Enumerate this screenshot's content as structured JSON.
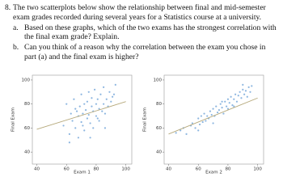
{
  "question": {
    "number": "8.",
    "intro": "The two scatterplots below show the relationship between final and mid-semester exam grades recorded during several years for a Statistics course at a university.",
    "parts": [
      {
        "label": "a.",
        "text": "Based on these graphs, which of the two exams has the strongest correlation with the final exam grade? Explain."
      },
      {
        "label": "b.",
        "text": "Can you think of a reason why the correlation between the exam you chose in part (a) and the final exam is higher?"
      }
    ]
  },
  "chart_data": [
    {
      "type": "scatter",
      "x_label": "Exam 1",
      "y_label": "Final Exam",
      "color": "#8db6e0",
      "x": [
        58,
        60,
        62,
        63,
        64,
        65,
        66,
        67,
        68,
        68,
        69,
        70,
        70,
        71,
        72,
        72,
        73,
        74,
        74,
        75,
        75,
        76,
        77,
        77,
        78,
        78,
        79,
        80,
        80,
        81,
        82,
        82,
        83,
        84,
        85,
        85,
        86,
        87,
        88,
        89,
        90,
        91,
        92,
        62,
        66,
        71,
        76,
        81,
        86,
        93
      ],
      "y": [
        62,
        80,
        55,
        72,
        66,
        84,
        60,
        74,
        70,
        52,
        78,
        65,
        88,
        72,
        58,
        80,
        75,
        68,
        82,
        90,
        71,
        64,
        78,
        85,
        60,
        74,
        92,
        70,
        80,
        84,
        76,
        66,
        88,
        74,
        80,
        94,
        72,
        84,
        78,
        90,
        82,
        86,
        88,
        48,
        76,
        62,
        52,
        68,
        60,
        96
      ],
      "fit_line": {
        "color": "#b5a87a",
        "x": [
          40,
          100
        ],
        "y": [
          59,
          82
        ]
      },
      "xlim": [
        37,
        104
      ],
      "ylim": [
        30,
        104
      ],
      "xticks": [
        40,
        60,
        80,
        100
      ],
      "yticks": [
        40,
        60,
        80,
        100
      ]
    },
    {
      "type": "scatter",
      "x_label": "Exam 2",
      "y_label": "Final Exam",
      "color": "#8db6e0",
      "x": [
        45,
        48,
        50,
        52,
        55,
        56,
        58,
        60,
        61,
        62,
        63,
        64,
        65,
        66,
        67,
        68,
        69,
        70,
        71,
        72,
        73,
        74,
        75,
        76,
        77,
        78,
        79,
        80,
        80,
        81,
        82,
        83,
        84,
        85,
        86,
        87,
        88,
        89,
        90,
        91,
        92,
        93,
        94,
        95,
        96,
        60,
        70,
        76,
        84,
        90
      ],
      "y": [
        56,
        58,
        60,
        55,
        62,
        64,
        60,
        68,
        63,
        70,
        65,
        72,
        66,
        70,
        68,
        74,
        71,
        76,
        70,
        78,
        73,
        75,
        80,
        77,
        72,
        82,
        78,
        84,
        76,
        81,
        86,
        79,
        84,
        88,
        82,
        87,
        90,
        85,
        92,
        88,
        91,
        86,
        94,
        90,
        95,
        58,
        64,
        82,
        78,
        96
      ],
      "fit_line": {
        "color": "#b5a87a",
        "x": [
          40,
          100
        ],
        "y": [
          55,
          85
        ]
      },
      "xlim": [
        37,
        104
      ],
      "ylim": [
        30,
        104
      ],
      "xticks": [
        40,
        60,
        80,
        100
      ],
      "yticks": [
        40,
        60,
        80,
        100
      ]
    }
  ]
}
